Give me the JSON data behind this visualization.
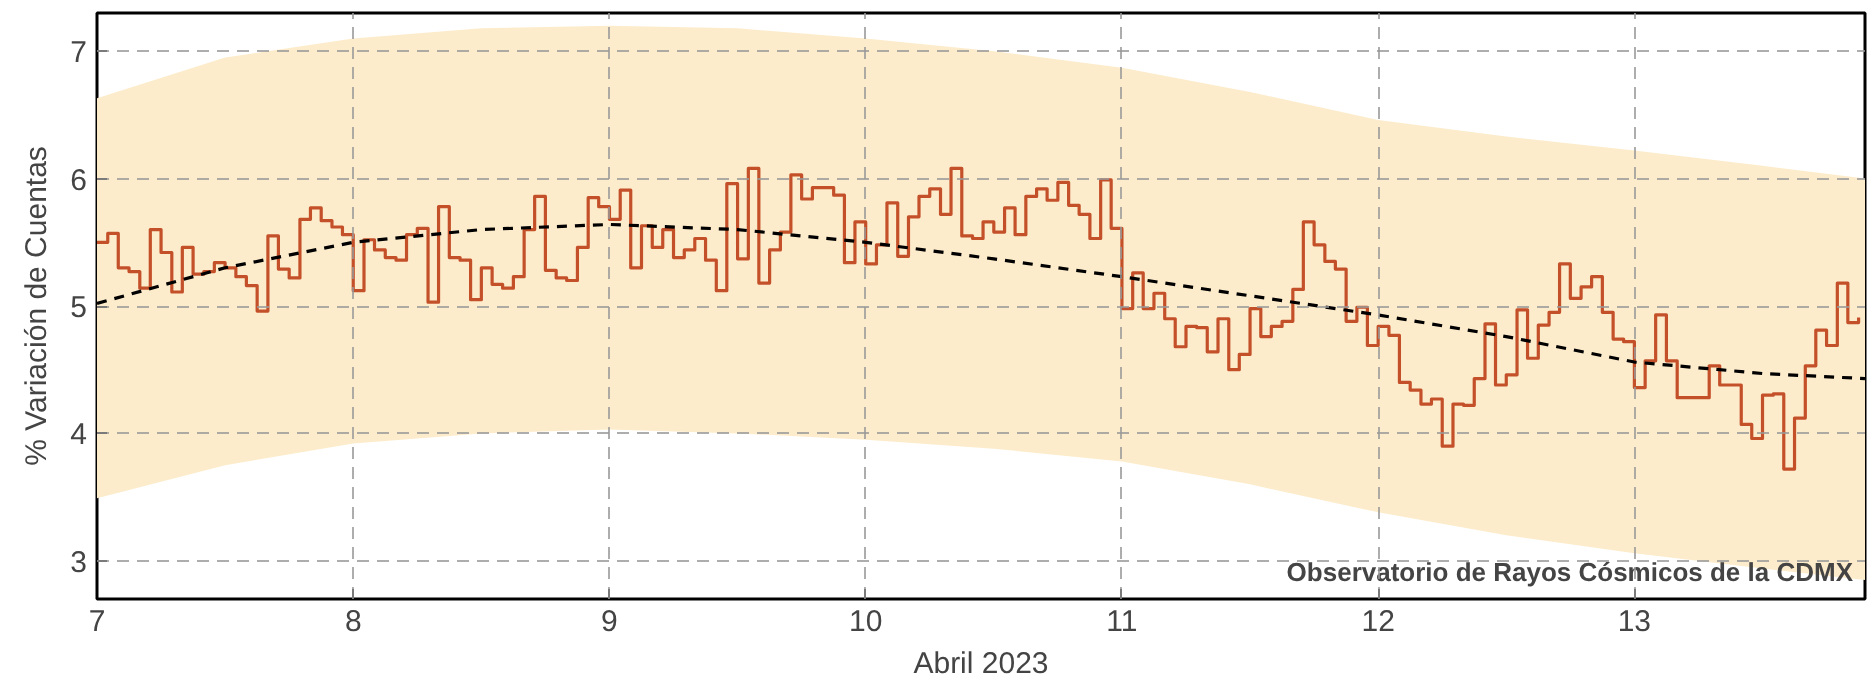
{
  "chart_data": {
    "type": "step",
    "xlabel": "Abril 2023",
    "ylabel": "% Variación de Cuentas",
    "xlim": [
      7,
      13.9
    ],
    "ylim": [
      2.7,
      7.3
    ],
    "xticks": [
      7,
      8,
      9,
      10,
      11,
      12,
      13
    ],
    "yticks": [
      3,
      4,
      5,
      6,
      7
    ],
    "grid": true,
    "annotations": [
      "Observatorio de Rayos Cósmicos de la CDMX"
    ],
    "series": [
      {
        "color": "#c4502a",
        "x": [
          7,
          7.042,
          7.083,
          7.125,
          7.167,
          7.208,
          7.25,
          7.292,
          7.333,
          7.375,
          7.417,
          7.458,
          7.5,
          7.542,
          7.583,
          7.625,
          7.667,
          7.708,
          7.75,
          7.792,
          7.833,
          7.875,
          7.917,
          7.958,
          8,
          8.042,
          8.083,
          8.125,
          8.167,
          8.208,
          8.25,
          8.292,
          8.333,
          8.375,
          8.417,
          8.458,
          8.5,
          8.542,
          8.583,
          8.625,
          8.667,
          8.708,
          8.75,
          8.792,
          8.833,
          8.875,
          8.917,
          8.958,
          9,
          9.042,
          9.083,
          9.125,
          9.167,
          9.208,
          9.25,
          9.292,
          9.333,
          9.375,
          9.417,
          9.458,
          9.5,
          9.542,
          9.583,
          9.625,
          9.667,
          9.708,
          9.75,
          9.792,
          9.833,
          9.875,
          9.917,
          9.958,
          10,
          10.042,
          10.083,
          10.125,
          10.167,
          10.208,
          10.25,
          10.292,
          10.333,
          10.375,
          10.417,
          10.458,
          10.5,
          10.542,
          10.583,
          10.625,
          10.667,
          10.708,
          10.75,
          10.792,
          10.833,
          10.875,
          10.917,
          10.958,
          11,
          11.042,
          11.083,
          11.125,
          11.167,
          11.208,
          11.25,
          11.292,
          11.333,
          11.375,
          11.417,
          11.458,
          11.5,
          11.542,
          11.583,
          11.625,
          11.667,
          11.708,
          11.75,
          11.792,
          11.833,
          11.875,
          11.917,
          11.958,
          12,
          12.042,
          12.083,
          12.125,
          12.167,
          12.208,
          12.25,
          12.292,
          12.333,
          12.375,
          12.417,
          12.458,
          12.5,
          12.542,
          12.583,
          12.625,
          12.667,
          12.708,
          12.75,
          12.792,
          12.833,
          12.875,
          12.917,
          12.958,
          13,
          13.042,
          13.083,
          13.125,
          13.167,
          13.208,
          13.25,
          13.292,
          13.333,
          13.375,
          13.417,
          13.458,
          13.5,
          13.542,
          13.583,
          13.625,
          13.667,
          13.708,
          13.75,
          13.792,
          13.833,
          13.875
        ],
        "values": [
          5.5,
          5.57,
          5.3,
          5.27,
          5.14,
          5.6,
          5.42,
          5.11,
          5.46,
          5.25,
          5.27,
          5.34,
          5.3,
          5.23,
          5.16,
          4.96,
          5.55,
          5.29,
          5.22,
          5.68,
          5.77,
          5.67,
          5.62,
          5.56,
          5.12,
          5.52,
          5.44,
          5.38,
          5.36,
          5.56,
          5.61,
          5.03,
          5.78,
          5.38,
          5.36,
          5.05,
          5.3,
          5.17,
          5.14,
          5.23,
          5.6,
          5.86,
          5.28,
          5.22,
          5.2,
          5.46,
          5.85,
          5.78,
          5.68,
          5.91,
          5.3,
          5.63,
          5.46,
          5.6,
          5.38,
          5.44,
          5.53,
          5.36,
          5.12,
          5.96,
          5.37,
          6.08,
          5.18,
          5.44,
          5.58,
          6.03,
          5.84,
          5.93,
          5.93,
          5.87,
          5.34,
          5.66,
          5.33,
          5.48,
          5.81,
          5.39,
          5.7,
          5.86,
          5.92,
          5.72,
          6.08,
          5.55,
          5.53,
          5.66,
          5.58,
          5.77,
          5.56,
          5.86,
          5.92,
          5.83,
          5.97,
          5.79,
          5.72,
          5.53,
          5.99,
          5.61,
          4.98,
          5.26,
          4.98,
          5.1,
          4.9,
          4.68,
          4.84,
          4.83,
          4.64,
          4.9,
          4.5,
          4.62,
          4.98,
          4.76,
          4.84,
          4.88,
          5.13,
          5.66,
          5.48,
          5.35,
          5.29,
          4.88,
          4.99,
          4.69,
          4.84,
          4.77,
          4.4,
          4.34,
          4.23,
          4.27,
          3.9,
          4.23,
          4.22,
          4.43,
          4.86,
          4.38,
          4.46,
          4.97,
          4.59,
          4.85,
          4.95,
          5.33,
          5.06,
          5.15,
          5.23,
          4.95,
          4.74,
          4.72,
          4.36,
          4.57,
          4.93,
          4.57,
          4.28,
          4.28,
          4.28,
          4.53,
          4.38,
          4.38,
          4.07,
          3.96,
          4.3,
          4.31,
          3.72,
          4.12,
          4.53,
          4.81,
          4.69,
          5.18,
          4.87,
          4.91
        ]
      },
      {
        "type": "line",
        "color": "#000000",
        "line_style": "dashed",
        "x": [
          7,
          7.5,
          8,
          8.5,
          9,
          9.5,
          10,
          10.5,
          11,
          11.5,
          12,
          12.5,
          13,
          13.5,
          13.9
        ],
        "values": [
          5.02,
          5.3,
          5.5,
          5.6,
          5.64,
          5.6,
          5.5,
          5.37,
          5.23,
          5.08,
          4.93,
          4.76,
          4.56,
          4.47,
          4.43
        ],
        "upper": [
          6.63,
          6.95,
          7.1,
          7.18,
          7.2,
          7.18,
          7.1,
          7.0,
          6.87,
          6.68,
          6.46,
          6.33,
          6.22,
          6.1,
          6.0
        ],
        "lower": [
          3.49,
          3.75,
          3.92,
          4.0,
          4.03,
          4.0,
          3.95,
          3.88,
          3.78,
          3.6,
          3.38,
          3.2,
          3.06,
          2.94,
          2.85
        ]
      }
    ]
  }
}
